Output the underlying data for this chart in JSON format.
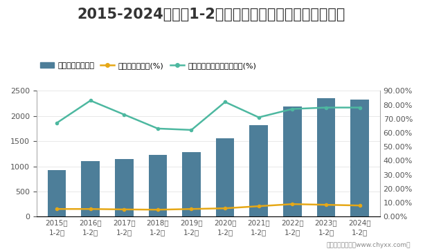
{
  "title": "2015-2024年各年1-2月云南省工业企业应收账款统计图",
  "categories_line1": [
    "2015年",
    "2016年",
    "2017年",
    "2018年",
    "2019年",
    "2020年",
    "2021年",
    "2022年",
    "2023年",
    "2024年"
  ],
  "categories_line2": [
    "1-2月",
    "1-2月",
    "1-2月",
    "1-2月",
    "1-2月",
    "1-2月",
    "1-2月",
    "1-2月",
    "1-2月",
    "1-2月"
  ],
  "bar_values": [
    930,
    1110,
    1150,
    1230,
    1280,
    1550,
    1820,
    2190,
    2350,
    2330
  ],
  "bar_color": "#4d7e99",
  "line1_values": [
    5.5,
    5.5,
    5.2,
    5.0,
    5.5,
    6.0,
    7.5,
    9.0,
    8.5,
    8.0
  ],
  "line1_color": "#e6a817",
  "line2_values": [
    67,
    83,
    73,
    63,
    62,
    82,
    71,
    77,
    78,
    78
  ],
  "line2_color": "#4db8a0",
  "ylim_left": [
    0,
    2500
  ],
  "ylim_right": [
    0,
    90
  ],
  "yticks_left": [
    0,
    500,
    1000,
    1500,
    2000,
    2500
  ],
  "yticks_right": [
    0,
    10,
    20,
    30,
    40,
    50,
    60,
    70,
    80,
    90
  ],
  "ytick_right_labels": [
    "0.00%",
    "10.00%",
    "20.00%",
    "30.00%",
    "40.00%",
    "50.00%",
    "60.00%",
    "70.00%",
    "80.00%",
    "90.00%"
  ],
  "legend_labels": [
    "应收账款（亿元）",
    "应收账款百分比(%)",
    "应收账款占营业收入的比重(%)"
  ],
  "footer": "制图：智研咨询（www.chyxx.com）",
  "bg_color": "#ffffff",
  "title_fontsize": 15,
  "tick_fontsize": 8,
  "legend_fontsize": 8,
  "grid_color": "#e8e8e8"
}
